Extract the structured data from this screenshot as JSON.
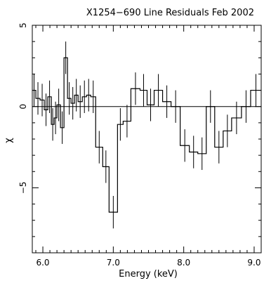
{
  "chart_data": {
    "type": "line",
    "title": "X1254−690   Line Residuals   Feb 2002",
    "xlabel": "Energy (keV)",
    "ylabel": "χ",
    "xlim": [
      5.85,
      9.1
    ],
    "ylim": [
      -9,
      5
    ],
    "xticks": [
      6.0,
      7.0,
      8.0,
      9.0
    ],
    "xtick_labels": [
      "6.0",
      "7.0",
      "8.0",
      "9.0"
    ],
    "yticks": [
      -5,
      0,
      5
    ],
    "ytick_labels": [
      "−5",
      "0",
      "5"
    ],
    "zero_line": 0,
    "grid": false,
    "series": [
      {
        "style": "histogram-step-with-errorbars",
        "color": "#000000",
        "points": [
          {
            "x0": 5.85,
            "x1": 5.9,
            "y": 1.0,
            "err": 1.0
          },
          {
            "x0": 5.9,
            "x1": 5.96,
            "y": 0.5,
            "err": 1.0
          },
          {
            "x0": 5.96,
            "x1": 6.02,
            "y": 0.4,
            "err": 1.0
          },
          {
            "x0": 6.02,
            "x1": 6.07,
            "y": -0.2,
            "err": 1.0
          },
          {
            "x0": 6.07,
            "x1": 6.12,
            "y": 0.6,
            "err": 1.0
          },
          {
            "x0": 6.12,
            "x1": 6.16,
            "y": -1.1,
            "err": 1.0
          },
          {
            "x0": 6.16,
            "x1": 6.2,
            "y": -0.7,
            "err": 1.0
          },
          {
            "x0": 6.2,
            "x1": 6.25,
            "y": 0.1,
            "err": 1.0
          },
          {
            "x0": 6.25,
            "x1": 6.3,
            "y": -1.3,
            "err": 1.0
          },
          {
            "x0": 6.3,
            "x1": 6.35,
            "y": 3.0,
            "err": 1.0
          },
          {
            "x0": 6.35,
            "x1": 6.4,
            "y": 0.5,
            "err": 1.0
          },
          {
            "x0": 6.4,
            "x1": 6.45,
            "y": 0.2,
            "err": 1.0
          },
          {
            "x0": 6.45,
            "x1": 6.5,
            "y": 0.7,
            "err": 1.0
          },
          {
            "x0": 6.5,
            "x1": 6.56,
            "y": 0.3,
            "err": 1.0
          },
          {
            "x0": 6.56,
            "x1": 6.62,
            "y": 0.6,
            "err": 1.0
          },
          {
            "x0": 6.62,
            "x1": 6.68,
            "y": 0.7,
            "err": 1.0
          },
          {
            "x0": 6.68,
            "x1": 6.75,
            "y": 0.6,
            "err": 1.0
          },
          {
            "x0": 6.75,
            "x1": 6.85,
            "y": -2.5,
            "err": 1.0
          },
          {
            "x0": 6.85,
            "x1": 6.94,
            "y": -3.7,
            "err": 1.0
          },
          {
            "x0": 6.94,
            "x1": 7.06,
            "y": -6.5,
            "err": 1.0
          },
          {
            "x0": 7.06,
            "x1": 7.14,
            "y": -1.1,
            "err": 1.0
          },
          {
            "x0": 7.14,
            "x1": 7.25,
            "y": -0.9,
            "err": 1.0
          },
          {
            "x0": 7.25,
            "x1": 7.38,
            "y": 1.1,
            "err": 1.0
          },
          {
            "x0": 7.38,
            "x1": 7.48,
            "y": 1.0,
            "err": 1.0
          },
          {
            "x0": 7.48,
            "x1": 7.58,
            "y": 0.1,
            "err": 1.0
          },
          {
            "x0": 7.58,
            "x1": 7.7,
            "y": 1.0,
            "err": 1.0
          },
          {
            "x0": 7.7,
            "x1": 7.82,
            "y": 0.3,
            "err": 1.0
          },
          {
            "x0": 7.82,
            "x1": 7.95,
            "y": 0.0,
            "err": 1.0
          },
          {
            "x0": 7.95,
            "x1": 8.08,
            "y": -2.4,
            "err": 1.0
          },
          {
            "x0": 8.08,
            "x1": 8.2,
            "y": -2.8,
            "err": 1.0
          },
          {
            "x0": 8.2,
            "x1": 8.32,
            "y": -2.9,
            "err": 1.0
          },
          {
            "x0": 8.32,
            "x1": 8.44,
            "y": 0.0,
            "err": 1.0
          },
          {
            "x0": 8.44,
            "x1": 8.56,
            "y": -2.5,
            "err": 1.0
          },
          {
            "x0": 8.56,
            "x1": 8.68,
            "y": -1.5,
            "err": 1.0
          },
          {
            "x0": 8.68,
            "x1": 8.82,
            "y": -0.7,
            "err": 1.0
          },
          {
            "x0": 8.82,
            "x1": 8.95,
            "y": 0.0,
            "err": 1.0
          },
          {
            "x0": 8.95,
            "x1": 9.1,
            "y": 1.0,
            "err": 1.0
          }
        ]
      }
    ]
  }
}
